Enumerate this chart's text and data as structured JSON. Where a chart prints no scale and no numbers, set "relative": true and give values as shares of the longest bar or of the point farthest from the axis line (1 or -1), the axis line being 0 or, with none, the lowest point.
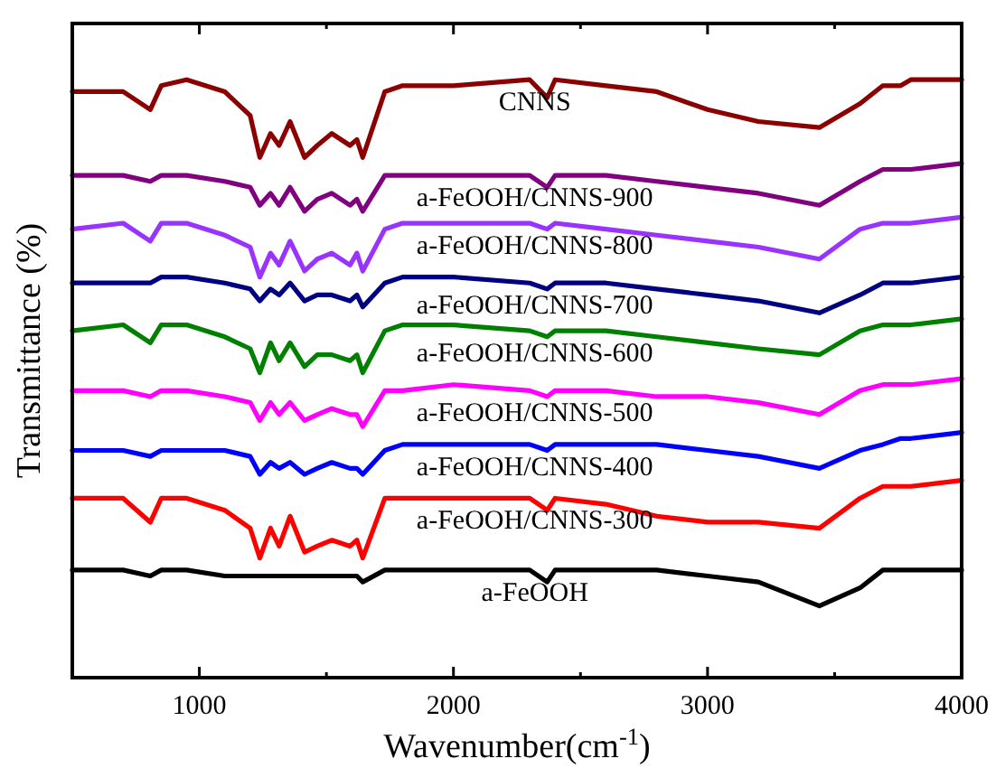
{
  "chart_data": {
    "type": "line",
    "relative": true,
    "xlabel": "Wavenumber(cm$^{-1}$)",
    "ylabel": "Transmittance (%)",
    "x": [
      500,
      700,
      807,
      850,
      950,
      1100,
      1200,
      1238,
      1280,
      1314,
      1357,
      1414,
      1464,
      1521,
      1593,
      1620,
      1643,
      1730,
      1800,
      2000,
      2300,
      2369,
      2400,
      2600,
      2800,
      3000,
      3200,
      3440,
      3600,
      3690,
      3760,
      3800,
      4000
    ],
    "xlim": [
      500,
      4000
    ],
    "xticks": [
      1000,
      {
        "value": 1500,
        "label": null
      },
      2000,
      {
        "value": 2500,
        "label": null
      },
      3000,
      {
        "value": 3500,
        "label": null
      },
      4000
    ],
    "tick_labels": "x",
    "grid": false,
    "marker": "none",
    "line_style": "solid",
    "series": [
      {
        "name": "CNNS",
        "color": "#8b0000",
        "values": [
          0.98,
          0.98,
          0.95,
          0.99,
          1.0,
          0.98,
          0.94,
          0.87,
          0.91,
          0.89,
          0.93,
          0.87,
          0.89,
          0.91,
          0.89,
          0.9,
          0.87,
          0.98,
          0.99,
          0.99,
          1.0,
          0.97,
          1.0,
          0.99,
          0.98,
          0.95,
          0.93,
          0.92,
          0.96,
          0.99,
          0.99,
          1.0,
          1.0
        ]
      },
      {
        "name": "a-FeOOH/CNNS-900",
        "color": "#800080",
        "values": [
          0.84,
          0.84,
          0.83,
          0.84,
          0.84,
          0.83,
          0.82,
          0.79,
          0.81,
          0.79,
          0.82,
          0.78,
          0.8,
          0.81,
          0.79,
          0.8,
          0.78,
          0.84,
          0.84,
          0.84,
          0.84,
          0.82,
          0.84,
          0.84,
          0.83,
          0.82,
          0.81,
          0.79,
          0.83,
          0.85,
          0.85,
          0.85,
          0.86
        ]
      },
      {
        "name": "a-FeOOH/CNNS-800",
        "color": "#9933ff",
        "values": [
          0.75,
          0.76,
          0.73,
          0.76,
          0.76,
          0.74,
          0.72,
          0.67,
          0.71,
          0.69,
          0.73,
          0.68,
          0.7,
          0.71,
          0.69,
          0.71,
          0.68,
          0.75,
          0.76,
          0.76,
          0.76,
          0.75,
          0.76,
          0.75,
          0.74,
          0.73,
          0.72,
          0.7,
          0.75,
          0.76,
          0.76,
          0.76,
          0.77
        ]
      },
      {
        "name": "a-FeOOH/CNNS-700",
        "color": "#000080",
        "values": [
          0.66,
          0.66,
          0.66,
          0.67,
          0.67,
          0.66,
          0.65,
          0.63,
          0.65,
          0.64,
          0.66,
          0.63,
          0.64,
          0.64,
          0.63,
          0.64,
          0.62,
          0.66,
          0.67,
          0.67,
          0.66,
          0.65,
          0.66,
          0.66,
          0.65,
          0.64,
          0.63,
          0.61,
          0.64,
          0.66,
          0.66,
          0.66,
          0.67
        ]
      },
      {
        "name": "a-FeOOH/CNNS-600",
        "color": "#008000",
        "values": [
          0.58,
          0.59,
          0.56,
          0.59,
          0.59,
          0.57,
          0.55,
          0.51,
          0.56,
          0.53,
          0.56,
          0.52,
          0.54,
          0.54,
          0.53,
          0.54,
          0.51,
          0.58,
          0.59,
          0.59,
          0.58,
          0.57,
          0.58,
          0.58,
          0.57,
          0.56,
          0.55,
          0.54,
          0.58,
          0.59,
          0.59,
          0.59,
          0.6
        ]
      },
      {
        "name": "a-FeOOH/CNNS-500",
        "color": "#ff00ff",
        "values": [
          0.48,
          0.48,
          0.47,
          0.48,
          0.48,
          0.47,
          0.46,
          0.43,
          0.46,
          0.44,
          0.46,
          0.43,
          0.44,
          0.45,
          0.44,
          0.44,
          0.42,
          0.48,
          0.48,
          0.49,
          0.48,
          0.47,
          0.48,
          0.48,
          0.47,
          0.47,
          0.46,
          0.44,
          0.48,
          0.49,
          0.49,
          0.49,
          0.5
        ]
      },
      {
        "name": "a-FeOOH/CNNS-400",
        "color": "#0000ff",
        "values": [
          0.38,
          0.38,
          0.37,
          0.38,
          0.38,
          0.38,
          0.37,
          0.34,
          0.36,
          0.35,
          0.36,
          0.34,
          0.35,
          0.36,
          0.35,
          0.35,
          0.34,
          0.38,
          0.39,
          0.39,
          0.39,
          0.38,
          0.39,
          0.39,
          0.39,
          0.38,
          0.37,
          0.35,
          0.38,
          0.39,
          0.4,
          0.4,
          0.41
        ]
      },
      {
        "name": "a-FeOOH/CNNS-300",
        "color": "#ff0000",
        "values": [
          0.3,
          0.3,
          0.26,
          0.3,
          0.3,
          0.28,
          0.25,
          0.2,
          0.25,
          0.22,
          0.27,
          0.21,
          0.22,
          0.23,
          0.22,
          0.23,
          0.2,
          0.3,
          0.3,
          0.3,
          0.3,
          0.28,
          0.3,
          0.29,
          0.27,
          0.26,
          0.26,
          0.25,
          0.3,
          0.32,
          0.32,
          0.32,
          0.33
        ]
      },
      {
        "name": "a-FeOOH",
        "color": "#000000",
        "values": [
          0.18,
          0.18,
          0.17,
          0.18,
          0.18,
          0.17,
          0.17,
          0.17,
          0.17,
          0.17,
          0.17,
          0.17,
          0.17,
          0.17,
          0.17,
          0.17,
          0.16,
          0.18,
          0.18,
          0.18,
          0.18,
          0.16,
          0.18,
          0.18,
          0.18,
          0.17,
          0.16,
          0.12,
          0.15,
          0.18,
          0.18,
          0.18,
          0.18
        ]
      }
    ]
  }
}
